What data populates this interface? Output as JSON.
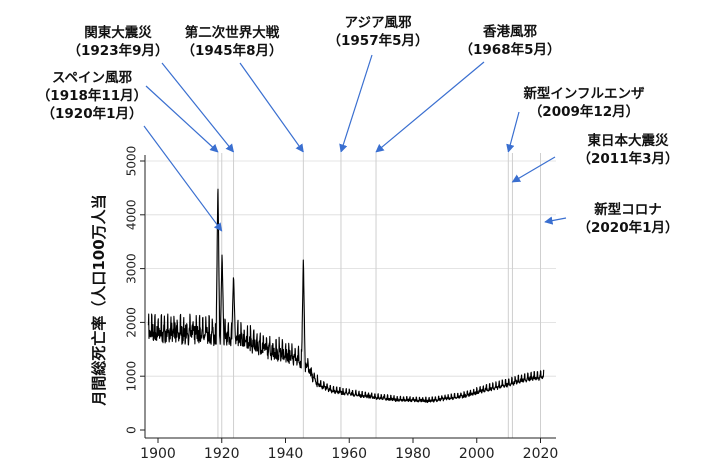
{
  "chart_data": {
    "type": "line",
    "title": "",
    "xlabel": "",
    "ylabel": "月間総死亡率（人口100万人当",
    "xlim": [
      1897,
      2021
    ],
    "ylim": [
      0,
      5000
    ],
    "x_ticks": [
      1900,
      1920,
      1940,
      1960,
      1980,
      2000,
      2020
    ],
    "y_ticks": [
      0,
      1000,
      2000,
      3000,
      4000,
      5000
    ],
    "grid": "horizontal",
    "series": [
      {
        "name": "月間総死亡率",
        "approx_trend": [
          {
            "x": 1897,
            "y": 1800
          },
          {
            "x": 1905,
            "y": 1800
          },
          {
            "x": 1915,
            "y": 1780
          },
          {
            "x": 1925,
            "y": 1700
          },
          {
            "x": 1935,
            "y": 1480
          },
          {
            "x": 1943,
            "y": 1350
          },
          {
            "x": 1947,
            "y": 1150
          },
          {
            "x": 1950,
            "y": 850
          },
          {
            "x": 1955,
            "y": 720
          },
          {
            "x": 1965,
            "y": 630
          },
          {
            "x": 1975,
            "y": 560
          },
          {
            "x": 1985,
            "y": 540
          },
          {
            "x": 1995,
            "y": 620
          },
          {
            "x": 2005,
            "y": 780
          },
          {
            "x": 2015,
            "y": 930
          },
          {
            "x": 2021,
            "y": 1000
          }
        ],
        "peaks": [
          {
            "x": 1918.8,
            "y": 4650
          },
          {
            "x": 1920.1,
            "y": 3300
          },
          {
            "x": 1923.7,
            "y": 2900
          },
          {
            "x": 1945.6,
            "y": 3220
          }
        ]
      }
    ],
    "events": [
      {
        "label": "関東大震災",
        "date": "（1923年9月）",
        "x": 1923.7
      },
      {
        "label": "第二次世界大戦",
        "date": "（1945年8月）",
        "x": 1945.6
      },
      {
        "label": "アジア風邪",
        "date": "（1957年5月）",
        "x": 1957.4
      },
      {
        "label": "香港風邪",
        "date": "（1968年5月）",
        "x": 1968.4
      },
      {
        "label": "新型インフルエンザ",
        "date": "（2009年12月）",
        "x": 2009.9
      },
      {
        "label": "東日本大震災",
        "date": "（2011年3月）",
        "x": 2011.2
      },
      {
        "label": "新型コロナ",
        "date": "（2020年1月）",
        "x": 2020.0
      },
      {
        "label": "スペイン風邪",
        "date": "（1918年11月）",
        "date2": "（1920年1月）",
        "x": 1918.8,
        "x2": 1920.0
      }
    ]
  }
}
